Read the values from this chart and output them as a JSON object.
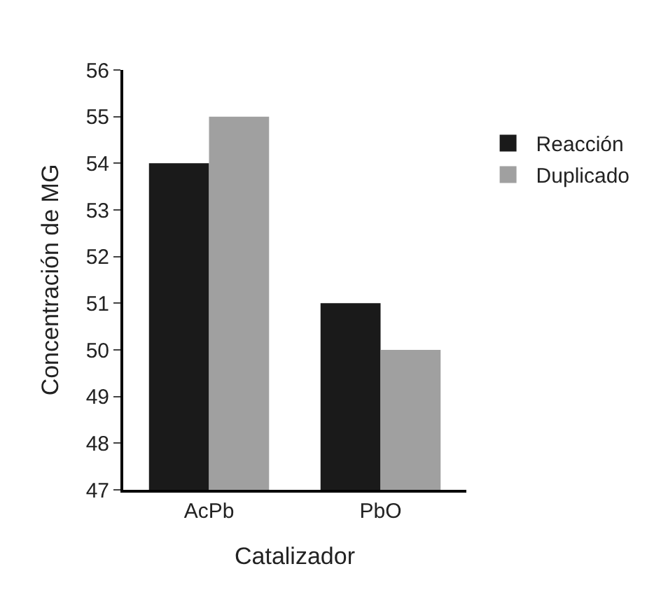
{
  "chart_data": {
    "type": "bar",
    "xlabel": "Catalizador",
    "ylabel": "Concentración de MG",
    "categories": [
      "AcPb",
      "PbO"
    ],
    "series": [
      {
        "name": "Reacción",
        "color": "#1a1a1a",
        "values": [
          54,
          51
        ]
      },
      {
        "name": "Duplicado",
        "color": "#a0a0a0",
        "values": [
          55,
          50
        ]
      }
    ],
    "ylim": [
      47,
      56
    ],
    "yticks": [
      47,
      48,
      49,
      50,
      51,
      52,
      53,
      54,
      55,
      56
    ],
    "legend": "top right"
  }
}
